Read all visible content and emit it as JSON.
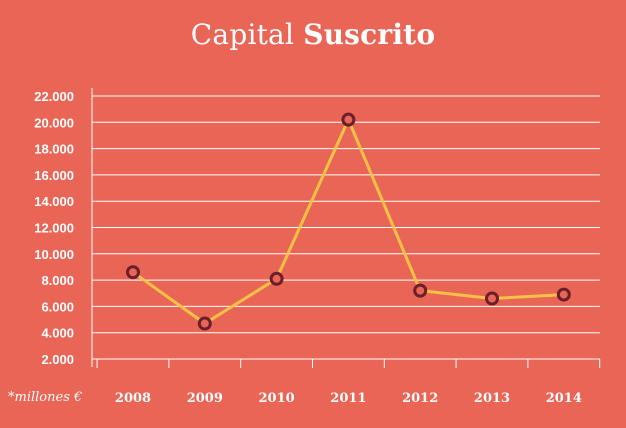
{
  "title": {
    "regular": "Capital",
    "bold": "Suscrito"
  },
  "unit_note": "*millones €",
  "colors": {
    "background": "#e96556",
    "grid": "#ffffff",
    "line": "#f7c145",
    "marker_stroke": "#6b1f2a"
  },
  "chart_data": {
    "type": "line",
    "title": "Capital Suscrito",
    "categories": [
      "2008",
      "2009",
      "2010",
      "2011",
      "2012",
      "2013",
      "2014"
    ],
    "series": [
      {
        "values": [
          8600,
          4700,
          8100,
          20200,
          7200,
          6600,
          6900
        ]
      }
    ],
    "y_ticks": [
      {
        "value": 2000,
        "label": "2.000"
      },
      {
        "value": 4000,
        "label": "4.000"
      },
      {
        "value": 6000,
        "label": "6.000"
      },
      {
        "value": 8000,
        "label": "8.000"
      },
      {
        "value": 10000,
        "label": "10.000"
      },
      {
        "value": 12000,
        "label": "12.000"
      },
      {
        "value": 14000,
        "label": "14.000"
      },
      {
        "value": 16000,
        "label": "16.000"
      },
      {
        "value": 18000,
        "label": "18.000"
      },
      {
        "value": 20000,
        "label": "20.000"
      },
      {
        "value": 22000,
        "label": "22.000"
      }
    ],
    "ylim": [
      2000,
      22000
    ],
    "grid": true,
    "xlabel": "",
    "ylabel": ""
  }
}
